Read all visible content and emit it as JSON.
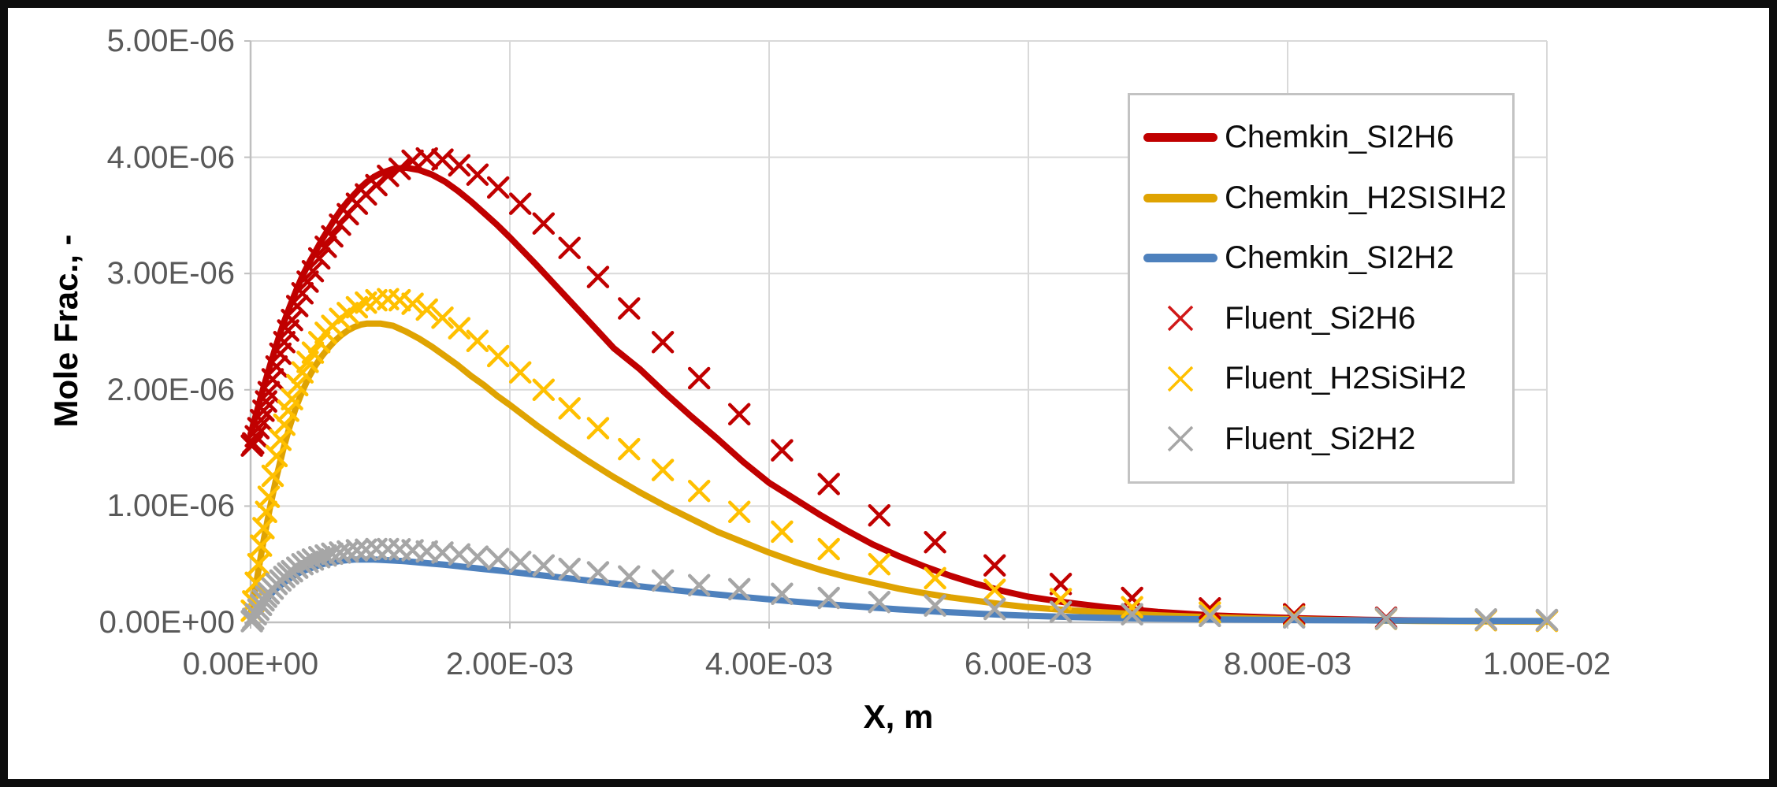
{
  "figure": {
    "background": "#ffffff",
    "frame_color": "#0d0d0d"
  },
  "titles": {
    "y_axis": "Mole Frac., -",
    "x_axis": "X, m"
  },
  "axes": {
    "x_tick_labels": [
      "0.00E+00",
      "2.00E-03",
      "4.00E-03",
      "6.00E-03",
      "8.00E-03",
      "1.00E-02"
    ],
    "y_tick_labels": [
      "5.00E-06",
      "4.00E-06",
      "3.00E-06",
      "2.00E-06",
      "1.00E-06",
      "0.00E+00"
    ],
    "tick_label_color": "#595959",
    "gridline_color": "#d9d9d9",
    "axis_line_color": "#bfbfbf"
  },
  "legend": {
    "items": [
      {
        "label": "Chemkin_SI2H6",
        "swatch": "line",
        "color": "#c00000"
      },
      {
        "label": "Chemkin_H2SISIH2",
        "swatch": "line",
        "color": "#dfa302"
      },
      {
        "label": "Chemkin_SI2H2",
        "swatch": "line",
        "color": "#4e81bd"
      },
      {
        "label": "Fluent_Si2H6",
        "swatch": "marker",
        "color": "#d01818"
      },
      {
        "label": "Fluent_H2SiSiH2",
        "swatch": "marker",
        "color": "#ffc000"
      },
      {
        "label": "Fluent_Si2H2",
        "swatch": "marker",
        "color": "#a6a6a6"
      }
    ]
  },
  "chart_data": {
    "type": "line",
    "title": "",
    "xlabel": "X, m",
    "ylabel": "Mole Frac., -",
    "xlim": [
      0,
      0.01
    ],
    "ylim": [
      0,
      5e-06
    ],
    "x_values_scale": 0.001,
    "y_values_scale": 1e-06,
    "grid": true,
    "legend_position": "inside-upper-right",
    "x_tick_labels": [
      "0.00E+00",
      "2.00E-03",
      "4.00E-03",
      "6.00E-03",
      "8.00E-03",
      "1.00E-02"
    ],
    "y_tick_labels": [
      "5.00E-06",
      "4.00E-06",
      "3.00E-06",
      "2.00E-06",
      "1.00E-06",
      "0.00E+00"
    ],
    "series": [
      {
        "name": "Chemkin_SI2H6",
        "style": "line",
        "color": "#c00000",
        "line_width": 8,
        "x": [
          0,
          0.05,
          0.1,
          0.15,
          0.2,
          0.25,
          0.3,
          0.35,
          0.4,
          0.45,
          0.5,
          0.55,
          0.6,
          0.65,
          0.7,
          0.75,
          0.8,
          0.85,
          0.9,
          0.95,
          1,
          1.1,
          1.2,
          1.3,
          1.4,
          1.5,
          1.6,
          1.7,
          1.8,
          1.9,
          2,
          2.2,
          2.4,
          2.6,
          2.8,
          3,
          3.2,
          3.4,
          3.6,
          3.8,
          4,
          4.2,
          4.4,
          4.6,
          4.8,
          5,
          5.2,
          5.4,
          5.6,
          5.8,
          6,
          6.3,
          6.6,
          7,
          7.4,
          7.8,
          8.2,
          8.6,
          9,
          9.5,
          10
        ],
        "y": [
          1.62,
          1.82,
          2.02,
          2.21,
          2.39,
          2.56,
          2.71,
          2.85,
          2.98,
          3.09,
          3.19,
          3.29,
          3.38,
          3.47,
          3.55,
          3.62,
          3.68,
          3.74,
          3.79,
          3.83,
          3.86,
          3.9,
          3.91,
          3.89,
          3.85,
          3.79,
          3.71,
          3.62,
          3.52,
          3.42,
          3.31,
          3.08,
          2.84,
          2.6,
          2.36,
          2.18,
          1.97,
          1.77,
          1.58,
          1.38,
          1.2,
          1.06,
          0.92,
          0.79,
          0.67,
          0.57,
          0.48,
          0.4,
          0.33,
          0.27,
          0.22,
          0.17,
          0.13,
          0.09,
          0.06,
          0.045,
          0.032,
          0.022,
          0.016,
          0.011,
          0.008
        ]
      },
      {
        "name": "Chemkin_H2SISIH2",
        "style": "line",
        "color": "#dfa302",
        "line_width": 8,
        "x": [
          0,
          0.05,
          0.1,
          0.15,
          0.2,
          0.25,
          0.3,
          0.35,
          0.4,
          0.45,
          0.5,
          0.55,
          0.6,
          0.65,
          0.7,
          0.75,
          0.8,
          0.85,
          0.9,
          0.95,
          1,
          1.1,
          1.2,
          1.3,
          1.4,
          1.5,
          1.6,
          1.7,
          1.8,
          1.9,
          2,
          2.2,
          2.4,
          2.6,
          2.8,
          3,
          3.2,
          3.4,
          3.6,
          3.8,
          4,
          4.2,
          4.4,
          4.6,
          4.8,
          5,
          5.2,
          5.4,
          5.6,
          5.8,
          6,
          6.3,
          6.6,
          7,
          7.4,
          7.8,
          8.2,
          8.6,
          9,
          9.5,
          10
        ],
        "y": [
          0.06,
          0.38,
          0.7,
          0.99,
          1.25,
          1.48,
          1.68,
          1.85,
          1.99,
          2.11,
          2.21,
          2.29,
          2.36,
          2.42,
          2.47,
          2.51,
          2.54,
          2.56,
          2.57,
          2.57,
          2.57,
          2.55,
          2.5,
          2.44,
          2.37,
          2.29,
          2.21,
          2.12,
          2.04,
          1.95,
          1.87,
          1.7,
          1.54,
          1.39,
          1.25,
          1.12,
          1.0,
          0.89,
          0.78,
          0.69,
          0.6,
          0.52,
          0.45,
          0.39,
          0.34,
          0.29,
          0.25,
          0.215,
          0.185,
          0.155,
          0.13,
          0.105,
          0.085,
          0.06,
          0.045,
          0.032,
          0.023,
          0.017,
          0.012,
          0.009,
          0.006
        ]
      },
      {
        "name": "Chemkin_SI2H2",
        "style": "line",
        "color": "#4e81bd",
        "line_width": 8,
        "x": [
          0,
          0.05,
          0.1,
          0.15,
          0.2,
          0.25,
          0.3,
          0.35,
          0.4,
          0.45,
          0.5,
          0.55,
          0.6,
          0.65,
          0.7,
          0.75,
          0.8,
          0.85,
          0.9,
          0.95,
          1,
          1.1,
          1.2,
          1.3,
          1.4,
          1.5,
          1.6,
          1.7,
          1.8,
          1.9,
          2,
          2.2,
          2.4,
          2.6,
          2.8,
          3,
          3.2,
          3.4,
          3.6,
          3.8,
          4,
          4.2,
          4.4,
          4.6,
          4.8,
          5,
          5.2,
          5.4,
          5.6,
          5.8,
          6,
          6.3,
          6.6,
          7,
          7.4,
          7.8,
          8.2,
          8.6,
          9,
          9.5,
          10
        ],
        "y": [
          0.02,
          0.1,
          0.17,
          0.235,
          0.29,
          0.335,
          0.375,
          0.41,
          0.44,
          0.46,
          0.48,
          0.5,
          0.51,
          0.52,
          0.53,
          0.535,
          0.54,
          0.54,
          0.54,
          0.54,
          0.538,
          0.532,
          0.525,
          0.515,
          0.505,
          0.495,
          0.483,
          0.47,
          0.458,
          0.447,
          0.435,
          0.41,
          0.385,
          0.36,
          0.335,
          0.31,
          0.285,
          0.262,
          0.24,
          0.218,
          0.198,
          0.178,
          0.16,
          0.143,
          0.127,
          0.112,
          0.098,
          0.086,
          0.075,
          0.065,
          0.057,
          0.047,
          0.039,
          0.031,
          0.026,
          0.022,
          0.019,
          0.017,
          0.015,
          0.013,
          0.012
        ]
      },
      {
        "name": "Fluent_Si2H6",
        "style": "x-marker",
        "color": "#c00000",
        "marker_size": 24,
        "x": [
          0.01,
          0.02,
          0.04,
          0.06,
          0.08,
          0.1,
          0.12,
          0.14,
          0.17,
          0.2,
          0.23,
          0.26,
          0.29,
          0.32,
          0.36,
          0.4,
          0.44,
          0.48,
          0.53,
          0.58,
          0.63,
          0.69,
          0.75,
          0.82,
          0.89,
          0.97,
          1.06,
          1.15,
          1.25,
          1.36,
          1.48,
          1.61,
          1.75,
          1.91,
          2.08,
          2.26,
          2.46,
          2.68,
          2.92,
          3.18,
          3.46,
          3.77,
          4.1,
          4.46,
          4.85,
          5.28,
          5.74,
          6.25,
          6.8,
          7.4,
          8.05,
          8.76,
          9.53,
          10.0
        ],
        "y": [
          1.52,
          1.54,
          1.6,
          1.67,
          1.74,
          1.82,
          1.9,
          1.98,
          2.09,
          2.2,
          2.31,
          2.41,
          2.51,
          2.6,
          2.72,
          2.83,
          2.93,
          3.02,
          3.13,
          3.23,
          3.32,
          3.42,
          3.51,
          3.6,
          3.68,
          3.76,
          3.84,
          3.9,
          3.97,
          3.99,
          3.98,
          3.93,
          3.85,
          3.74,
          3.6,
          3.43,
          3.22,
          2.97,
          2.7,
          2.41,
          2.1,
          1.79,
          1.48,
          1.19,
          0.92,
          0.69,
          0.49,
          0.33,
          0.21,
          0.12,
          0.07,
          0.04,
          0.02,
          0.015
        ]
      },
      {
        "name": "Fluent_H2SiSiH2",
        "style": "x-marker",
        "color": "#ffc000",
        "marker_size": 24,
        "x": [
          0.01,
          0.02,
          0.04,
          0.06,
          0.08,
          0.1,
          0.12,
          0.14,
          0.17,
          0.2,
          0.23,
          0.26,
          0.29,
          0.32,
          0.36,
          0.4,
          0.44,
          0.48,
          0.53,
          0.58,
          0.63,
          0.69,
          0.75,
          0.82,
          0.89,
          0.97,
          1.06,
          1.15,
          1.25,
          1.36,
          1.48,
          1.61,
          1.75,
          1.91,
          2.08,
          2.26,
          2.46,
          2.68,
          2.92,
          3.18,
          3.46,
          3.77,
          4.1,
          4.46,
          4.85,
          5.28,
          5.74,
          6.25,
          6.8,
          7.4,
          8.05,
          8.76,
          9.53,
          10.0
        ],
        "y": [
          0.1,
          0.18,
          0.34,
          0.5,
          0.66,
          0.81,
          0.95,
          1.08,
          1.26,
          1.43,
          1.57,
          1.7,
          1.82,
          1.92,
          2.04,
          2.15,
          2.24,
          2.32,
          2.41,
          2.49,
          2.55,
          2.61,
          2.66,
          2.71,
          2.75,
          2.77,
          2.78,
          2.77,
          2.74,
          2.69,
          2.62,
          2.53,
          2.42,
          2.29,
          2.15,
          2.0,
          1.84,
          1.67,
          1.49,
          1.31,
          1.13,
          0.95,
          0.78,
          0.63,
          0.5,
          0.38,
          0.28,
          0.2,
          0.13,
          0.085,
          0.05,
          0.03,
          0.018,
          0.012
        ]
      },
      {
        "name": "Fluent_Si2H2",
        "style": "x-marker",
        "color": "#a6a6a6",
        "marker_size": 24,
        "x": [
          0.01,
          0.02,
          0.04,
          0.06,
          0.08,
          0.1,
          0.12,
          0.14,
          0.17,
          0.2,
          0.23,
          0.26,
          0.29,
          0.32,
          0.36,
          0.4,
          0.44,
          0.48,
          0.53,
          0.58,
          0.63,
          0.69,
          0.75,
          0.82,
          0.89,
          0.97,
          1.06,
          1.15,
          1.25,
          1.36,
          1.48,
          1.61,
          1.75,
          1.91,
          2.08,
          2.26,
          2.46,
          2.68,
          2.92,
          3.18,
          3.46,
          3.77,
          4.1,
          4.46,
          4.85,
          5.28,
          5.74,
          6.25,
          6.8,
          7.4,
          8.05,
          8.76,
          9.53,
          10.0
        ],
        "y": [
          0.01,
          0.03,
          0.07,
          0.11,
          0.15,
          0.19,
          0.22,
          0.25,
          0.29,
          0.33,
          0.36,
          0.39,
          0.42,
          0.44,
          0.47,
          0.5,
          0.52,
          0.54,
          0.56,
          0.575,
          0.59,
          0.6,
          0.61,
          0.62,
          0.625,
          0.63,
          0.63,
          0.628,
          0.62,
          0.61,
          0.6,
          0.585,
          0.565,
          0.545,
          0.52,
          0.49,
          0.46,
          0.43,
          0.395,
          0.36,
          0.32,
          0.285,
          0.245,
          0.21,
          0.175,
          0.145,
          0.115,
          0.09,
          0.07,
          0.055,
          0.042,
          0.032,
          0.025,
          0.02
        ]
      }
    ]
  }
}
